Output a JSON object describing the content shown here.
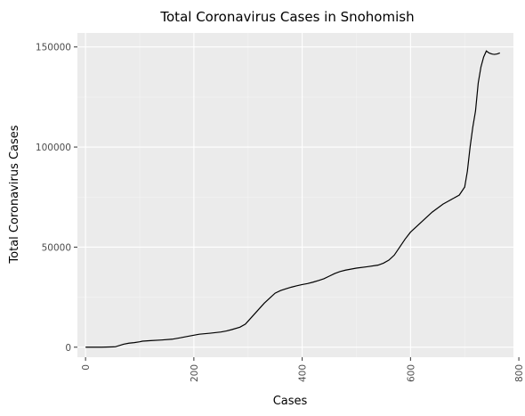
{
  "chart_data": {
    "type": "line",
    "title": "Total Coronavirus Cases in Snohomish",
    "xlabel": "Cases",
    "ylabel": "Total Coronavirus Cases",
    "xlim": [
      -15,
      790
    ],
    "ylim": [
      -5000,
      157000
    ],
    "x_ticks": [
      0,
      200,
      400,
      600,
      800
    ],
    "y_ticks": [
      0,
      50000,
      100000,
      150000
    ],
    "x_tick_labels": [
      "0",
      "200",
      "400",
      "600",
      "800"
    ],
    "y_tick_labels": [
      "0",
      "50000",
      "100000",
      "150000"
    ],
    "grid": true,
    "legend": "none",
    "colors": {
      "panel": "#ebebeb",
      "grid_major": "#ffffff",
      "grid_minor": "#f5f5f5",
      "line": "#000000"
    },
    "series": [
      {
        "x": [
          0,
          30,
          55,
          70,
          80,
          90,
          100,
          105,
          120,
          140,
          160,
          175,
          190,
          200,
          210,
          230,
          250,
          260,
          270,
          285,
          295,
          300,
          310,
          320,
          330,
          340,
          350,
          360,
          370,
          380,
          390,
          400,
          410,
          420,
          430,
          440,
          450,
          460,
          470,
          480,
          490,
          500,
          520,
          540,
          550,
          560,
          570,
          580,
          590,
          600,
          610,
          620,
          630,
          640,
          650,
          660,
          670,
          680,
          690,
          700,
          705,
          710,
          715,
          720,
          725,
          730,
          735,
          740,
          745,
          750,
          752,
          755,
          760,
          765
        ],
        "y": [
          0,
          0,
          200,
          1500,
          2000,
          2300,
          2700,
          3000,
          3300,
          3600,
          4000,
          4700,
          5500,
          6000,
          6500,
          7000,
          7600,
          8100,
          8800,
          10000,
          11500,
          13000,
          16000,
          19000,
          22000,
          24500,
          27000,
          28300,
          29200,
          30000,
          30700,
          31300,
          31800,
          32500,
          33300,
          34200,
          35500,
          36800,
          37800,
          38500,
          39000,
          39500,
          40200,
          41000,
          42000,
          43500,
          46000,
          50000,
          54000,
          57500,
          60000,
          62500,
          65000,
          67500,
          69500,
          71500,
          73000,
          74500,
          76000,
          80000,
          88000,
          100000,
          110000,
          118000,
          132000,
          140000,
          145000,
          148000,
          147000,
          146500,
          146400,
          146300,
          146500,
          147000
        ]
      }
    ]
  }
}
